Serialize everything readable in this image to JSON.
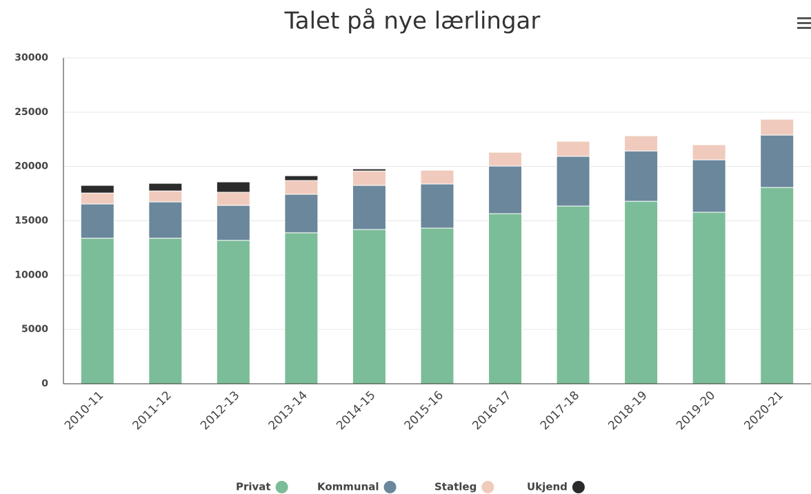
{
  "chart_data": {
    "type": "stacked_bar",
    "title": "Talet på nye lærlingar",
    "categories": [
      "2010-11",
      "2011-12",
      "2012-13",
      "2013-14",
      "2014-15",
      "2015-16",
      "2016-17",
      "2017-18",
      "2018-19",
      "2019-20",
      "2020-21"
    ],
    "series": [
      {
        "name": "Privat",
        "color": "#7bbd98",
        "values": [
          13400,
          13400,
          13200,
          13900,
          14200,
          14330,
          15660,
          16360,
          16800,
          15790,
          18070
        ]
      },
      {
        "name": "Kommunal",
        "color": "#6a879c",
        "values": [
          3150,
          3340,
          3220,
          3540,
          4060,
          4060,
          4380,
          4570,
          4630,
          4820,
          4820
        ]
      },
      {
        "name": "Statleg",
        "color": "#f0cbbd",
        "values": [
          1010,
          1010,
          1210,
          1270,
          1330,
          1270,
          1270,
          1390,
          1400,
          1390,
          1460
        ]
      },
      {
        "name": "Ukjend",
        "color": "#2b2b2b",
        "values": [
          700,
          700,
          950,
          440,
          190,
          null,
          null,
          null,
          null,
          null,
          null
        ]
      }
    ],
    "ylim": [
      0,
      30000
    ],
    "yticks": [
      0,
      5000,
      10000,
      15000,
      20000,
      25000,
      30000
    ],
    "grid": true
  }
}
